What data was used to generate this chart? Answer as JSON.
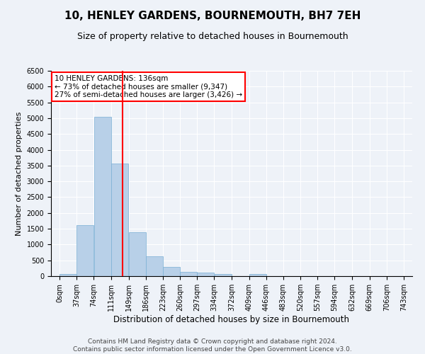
{
  "title": "10, HENLEY GARDENS, BOURNEMOUTH, BH7 7EH",
  "subtitle": "Size of property relative to detached houses in Bournemouth",
  "xlabel": "Distribution of detached houses by size in Bournemouth",
  "ylabel": "Number of detached properties",
  "bar_color": "#b8d0e8",
  "bar_edge_color": "#7aafd4",
  "vline_color": "red",
  "vline_x": 136,
  "categories": [
    "0sqm",
    "37sqm",
    "74sqm",
    "111sqm",
    "149sqm",
    "186sqm",
    "223sqm",
    "260sqm",
    "297sqm",
    "334sqm",
    "372sqm",
    "409sqm",
    "446sqm",
    "483sqm",
    "520sqm",
    "557sqm",
    "594sqm",
    "632sqm",
    "669sqm",
    "706sqm",
    "743sqm"
  ],
  "bin_edges": [
    0,
    37,
    74,
    111,
    149,
    186,
    223,
    260,
    297,
    334,
    372,
    409,
    446,
    483,
    520,
    557,
    594,
    632,
    669,
    706,
    743
  ],
  "values": [
    75,
    1625,
    5050,
    3575,
    1400,
    625,
    290,
    140,
    110,
    75,
    0,
    60,
    0,
    0,
    0,
    0,
    0,
    0,
    0,
    0
  ],
  "annotation_line1": "10 HENLEY GARDENS: 136sqm",
  "annotation_line2": "← 73% of detached houses are smaller (9,347)",
  "annotation_line3": "27% of semi-detached houses are larger (3,426) →",
  "ylim": [
    0,
    6500
  ],
  "yticks": [
    0,
    500,
    1000,
    1500,
    2000,
    2500,
    3000,
    3500,
    4000,
    4500,
    5000,
    5500,
    6000,
    6500
  ],
  "footer_line1": "Contains HM Land Registry data © Crown copyright and database right 2024.",
  "footer_line2": "Contains public sector information licensed under the Open Government Licence v3.0.",
  "background_color": "#eef2f8",
  "plot_bg_color": "#eef2f8",
  "grid_color": "#ffffff",
  "title_fontsize": 11,
  "subtitle_fontsize": 9,
  "xlabel_fontsize": 8.5,
  "ylabel_fontsize": 8,
  "tick_fontsize": 7,
  "annotation_fontsize": 7.5,
  "footer_fontsize": 6.5
}
